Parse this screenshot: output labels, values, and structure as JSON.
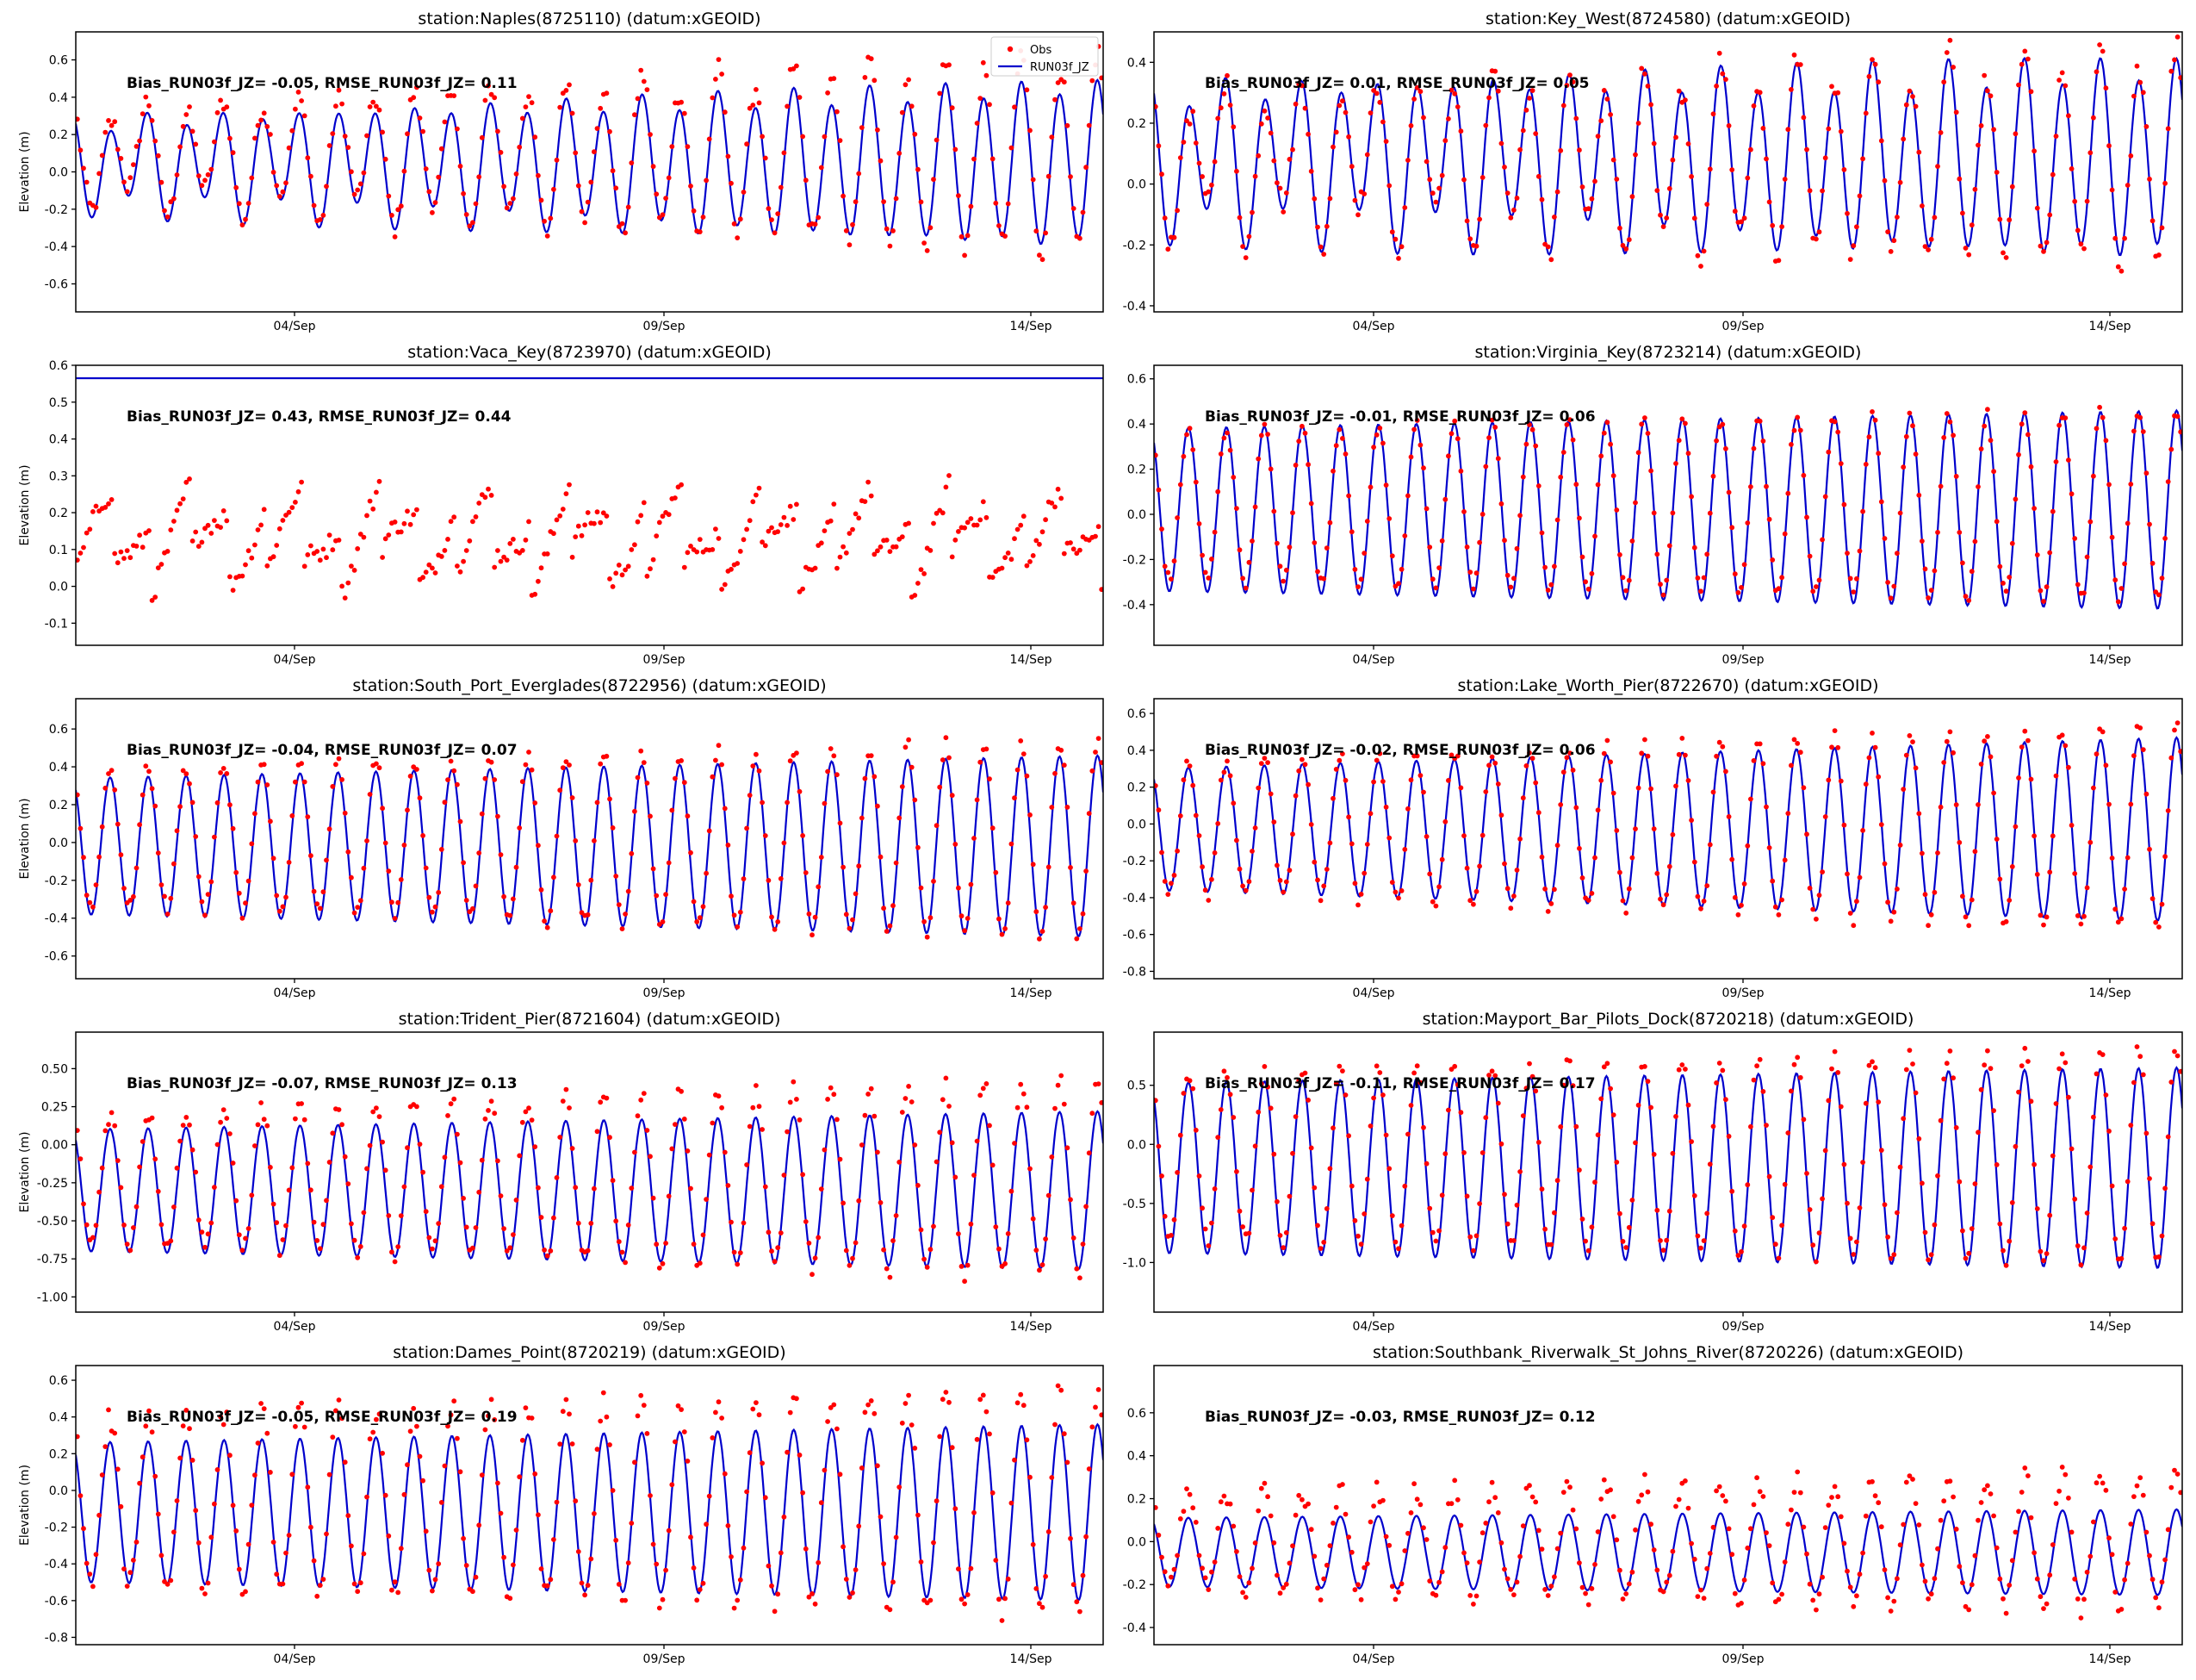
{
  "colors": {
    "obs": "#ff0000",
    "model": "#0000cc",
    "axis": "#000000"
  },
  "legend": {
    "obs": "Obs",
    "model": "RUN03f_JZ",
    "placement": "upper right of first panel"
  },
  "chart_data": [
    {
      "type": "line",
      "title": "station:Naples(8725110) (datum:xGEOID)",
      "ylabel": "Elevation (m)",
      "ylim": [
        -0.75,
        0.75
      ],
      "yticks": [
        -0.6,
        -0.4,
        -0.2,
        0.0,
        0.2,
        0.4,
        0.6
      ],
      "ytick_labels": [
        "-0.6",
        "-0.4",
        "-0.2",
        "0.0",
        "0.2",
        "0.4",
        "0.6"
      ],
      "xlim": [
        "2024-09-01",
        "2024-09-15"
      ],
      "xticks": [
        "04/Sep",
        "09/Sep",
        "14/Sep"
      ],
      "annotation": "Bias_RUN03f_JZ= -0.05, RMSE_RUN03f_JZ=  0.11",
      "legend": true,
      "model": {
        "offset": 0.04,
        "amp_start": 0.22,
        "amp_end": 0.42,
        "mixed": true
      },
      "obs": {
        "offset": 0.09,
        "amp_start": 0.22,
        "amp_end": 0.52,
        "noise": 0.06
      }
    },
    {
      "type": "line",
      "title": "station:Key_West(8724580) (datum:xGEOID)",
      "ylabel": "",
      "ylim": [
        -0.42,
        0.5
      ],
      "yticks": [
        -0.4,
        -0.2,
        0.0,
        0.2,
        0.4
      ],
      "ytick_labels": [
        "-0.4",
        "-0.2",
        "0.0",
        "0.2",
        "0.4"
      ],
      "xlim": [
        "2024-09-01",
        "2024-09-15"
      ],
      "xticks": [
        "04/Sep",
        "09/Sep",
        "14/Sep"
      ],
      "annotation": "Bias_RUN03f_JZ=  0.01, RMSE_RUN03f_JZ=  0.05",
      "legend": false,
      "model": {
        "offset": 0.08,
        "amp_start": 0.22,
        "amp_end": 0.3,
        "mixed": true
      },
      "obs": {
        "offset": 0.08,
        "amp_start": 0.2,
        "amp_end": 0.34,
        "noise": 0.04
      }
    },
    {
      "type": "line",
      "title": "station:Vaca_Key(8723970) (datum:xGEOID)",
      "ylabel": "Elevation (m)",
      "ylim": [
        -0.16,
        0.6
      ],
      "yticks": [
        -0.1,
        0.0,
        0.1,
        0.2,
        0.3,
        0.4,
        0.5,
        0.6
      ],
      "ytick_labels": [
        "-0.1",
        "0.0",
        "0.1",
        "0.2",
        "0.3",
        "0.4",
        "0.5",
        "0.6"
      ],
      "xlim": [
        "2024-09-01",
        "2024-09-15"
      ],
      "xticks": [
        "04/Sep",
        "09/Sep",
        "14/Sep"
      ],
      "annotation": "Bias_RUN03f_JZ=  0.43, RMSE_RUN03f_JZ=  0.44",
      "legend": false,
      "model": {
        "constant": 0.565
      },
      "obs": {
        "offset": 0.13,
        "amp_start": 0.12,
        "amp_end": 0.12,
        "noise": 0.03,
        "sawtooth": true
      }
    },
    {
      "type": "line",
      "title": "station:Virginia_Key(8723214) (datum:xGEOID)",
      "ylabel": "",
      "ylim": [
        -0.58,
        0.66
      ],
      "yticks": [
        -0.4,
        -0.2,
        0.0,
        0.2,
        0.4,
        0.6
      ],
      "ytick_labels": [
        "-0.4",
        "-0.2",
        "0.0",
        "0.2",
        "0.4",
        "0.6"
      ],
      "xlim": [
        "2024-09-01",
        "2024-09-15"
      ],
      "xticks": [
        "04/Sep",
        "09/Sep",
        "14/Sep"
      ],
      "annotation": "Bias_RUN03f_JZ= -0.01, RMSE_RUN03f_JZ=  0.06",
      "legend": false,
      "model": {
        "offset": 0.02,
        "amp_start": 0.36,
        "amp_end": 0.44,
        "mixed": false
      },
      "obs": {
        "offset": 0.04,
        "amp_start": 0.33,
        "amp_end": 0.42,
        "noise": 0.03
      }
    },
    {
      "type": "line",
      "title": "station:South_Port_Everglades(8722956) (datum:xGEOID)",
      "ylabel": "Elevation (m)",
      "ylim": [
        -0.72,
        0.76
      ],
      "yticks": [
        -0.6,
        -0.4,
        -0.2,
        0.0,
        0.2,
        0.4,
        0.6
      ],
      "ytick_labels": [
        "-0.6",
        "-0.4",
        "-0.2",
        "0.0",
        "0.2",
        "0.4",
        "0.6"
      ],
      "xlim": [
        "2024-09-01",
        "2024-09-15"
      ],
      "xticks": [
        "04/Sep",
        "09/Sep",
        "14/Sep"
      ],
      "annotation": "Bias_RUN03f_JZ= -0.04, RMSE_RUN03f_JZ=  0.07",
      "legend": false,
      "model": {
        "offset": -0.02,
        "amp_start": 0.36,
        "amp_end": 0.48,
        "mixed": false
      },
      "obs": {
        "offset": 0.02,
        "amp_start": 0.36,
        "amp_end": 0.52,
        "noise": 0.04
      }
    },
    {
      "type": "line",
      "title": "station:Lake_Worth_Pier(8722670) (datum:xGEOID)",
      "ylabel": "",
      "ylim": [
        -0.84,
        0.68
      ],
      "yticks": [
        -0.8,
        -0.6,
        -0.4,
        -0.2,
        0.0,
        0.2,
        0.4,
        0.6
      ],
      "ytick_labels": [
        "-0.8",
        "-0.6",
        "-0.4",
        "-0.2",
        "0.0",
        "0.2",
        "0.4",
        "0.6"
      ],
      "xlim": [
        "2024-09-01",
        "2024-09-15"
      ],
      "xticks": [
        "04/Sep",
        "09/Sep",
        "14/Sep"
      ],
      "annotation": "Bias_RUN03f_JZ= -0.02, RMSE_RUN03f_JZ=  0.06",
      "legend": false,
      "model": {
        "offset": -0.03,
        "amp_start": 0.33,
        "amp_end": 0.5,
        "mixed": false
      },
      "obs": {
        "offset": -0.02,
        "amp_start": 0.35,
        "amp_end": 0.56,
        "noise": 0.04
      }
    },
    {
      "type": "line",
      "title": "station:Trident_Pier(8721604) (datum:xGEOID)",
      "ylabel": "Elevation (m)",
      "ylim": [
        -1.1,
        0.74
      ],
      "yticks": [
        -1.0,
        -0.75,
        -0.5,
        -0.25,
        0.0,
        0.25,
        0.5
      ],
      "ytick_labels": [
        "-1.00",
        "-0.75",
        "-0.50",
        "-0.25",
        "0.00",
        "0.25",
        "0.50"
      ],
      "xlim": [
        "2024-09-01",
        "2024-09-15"
      ],
      "xticks": [
        "04/Sep",
        "09/Sep",
        "14/Sep"
      ],
      "annotation": "Bias_RUN03f_JZ= -0.07, RMSE_RUN03f_JZ=  0.13",
      "legend": false,
      "model": {
        "offset": -0.3,
        "amp_start": 0.4,
        "amp_end": 0.52,
        "mixed": false
      },
      "obs": {
        "offset": -0.22,
        "amp_start": 0.42,
        "amp_end": 0.66,
        "noise": 0.06
      }
    },
    {
      "type": "line",
      "title": "station:Mayport_Bar_Pilots_Dock(8720218) (datum:xGEOID)",
      "ylabel": "",
      "ylim": [
        -1.42,
        0.95
      ],
      "yticks": [
        -1.0,
        -0.5,
        0.0,
        0.5
      ],
      "ytick_labels": [
        "-1.0",
        "-0.5",
        "0.0",
        "0.5"
      ],
      "xlim": [
        "2024-09-01",
        "2024-09-15"
      ],
      "xticks": [
        "04/Sep",
        "09/Sep",
        "14/Sep"
      ],
      "annotation": "Bias_RUN03f_JZ= -0.11, RMSE_RUN03f_JZ=  0.17",
      "legend": false,
      "model": {
        "offset": -0.2,
        "amp_start": 0.72,
        "amp_end": 0.85,
        "mixed": false
      },
      "obs": {
        "offset": -0.1,
        "amp_start": 0.7,
        "amp_end": 0.92,
        "noise": 0.06
      }
    },
    {
      "type": "line",
      "title": "station:Dames_Point(8720219) (datum:xGEOID)",
      "ylabel": "Elevation (m)",
      "ylim": [
        -0.84,
        0.68
      ],
      "yticks": [
        -0.8,
        -0.6,
        -0.4,
        -0.2,
        0.0,
        0.2,
        0.4,
        0.6
      ],
      "ytick_labels": [
        "-0.8",
        "-0.6",
        "-0.4",
        "-0.2",
        "0.0",
        "0.2",
        "0.4",
        "0.6"
      ],
      "xlim": [
        "2024-09-01",
        "2024-09-15"
      ],
      "xticks": [
        "04/Sep",
        "09/Sep",
        "14/Sep"
      ],
      "annotation": "Bias_RUN03f_JZ= -0.05, RMSE_RUN03f_JZ=  0.19",
      "legend": false,
      "model": {
        "offset": -0.12,
        "amp_start": 0.38,
        "amp_end": 0.48,
        "mixed": false
      },
      "obs": {
        "offset": -0.06,
        "amp_start": 0.45,
        "amp_end": 0.62,
        "noise": 0.07
      }
    },
    {
      "type": "line",
      "title": "station:Southbank_Riverwalk_St_Johns_River(8720226) (datum:xGEOID)",
      "ylabel": "",
      "ylim": [
        -0.48,
        0.82
      ],
      "yticks": [
        -0.4,
        -0.2,
        0.0,
        0.2,
        0.4,
        0.6
      ],
      "ytick_labels": [
        "-0.4",
        "-0.2",
        "0.0",
        "0.2",
        "0.4",
        "0.6"
      ],
      "xlim": [
        "2024-09-01",
        "2024-09-15"
      ],
      "xticks": [
        "04/Sep",
        "09/Sep",
        "14/Sep"
      ],
      "annotation": "Bias_RUN03f_JZ= -0.03, RMSE_RUN03f_JZ=  0.12",
      "legend": false,
      "model": {
        "offset": -0.05,
        "amp_start": 0.16,
        "amp_end": 0.2,
        "mixed": false
      },
      "obs": {
        "offset": 0.0,
        "amp_start": 0.22,
        "amp_end": 0.32,
        "noise": 0.05
      }
    }
  ]
}
